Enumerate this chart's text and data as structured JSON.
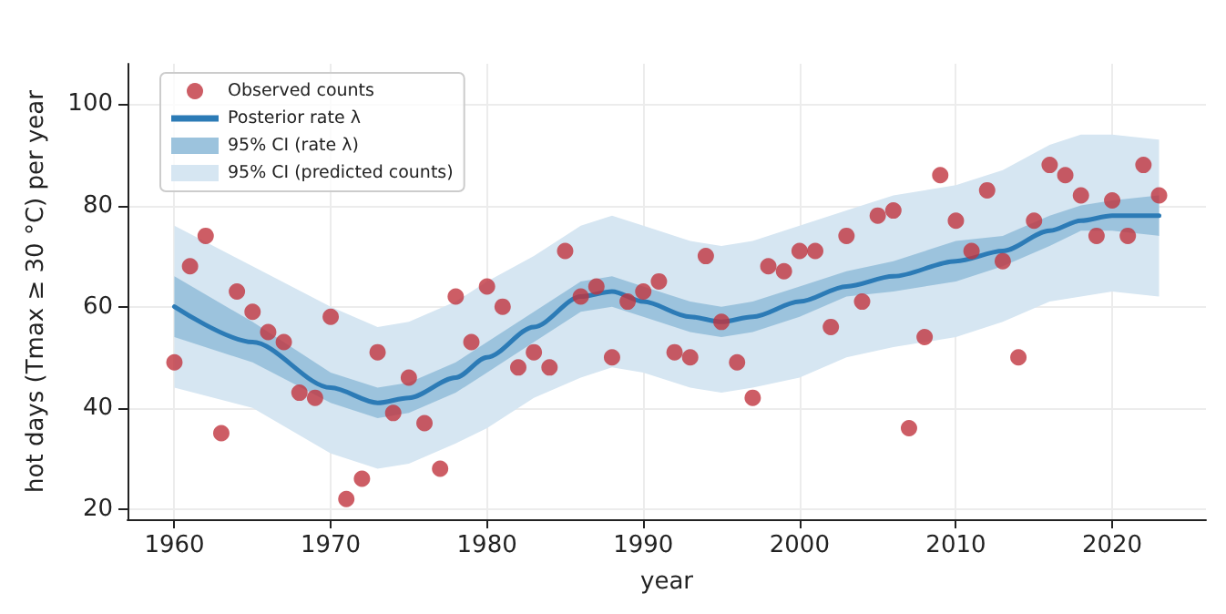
{
  "chart_data": {
    "type": "scatter",
    "xlabel": "year",
    "ylabel": "hot days (Tmax ≥ 30 °C) per year",
    "xlim": [
      1957,
      2026
    ],
    "ylim": [
      18,
      108
    ],
    "xticks": [
      1960,
      1970,
      1980,
      1990,
      2000,
      2010,
      2020
    ],
    "yticks": [
      20,
      40,
      60,
      80,
      100
    ],
    "grid": true,
    "legend": "top left",
    "marker": "circle",
    "series": [
      {
        "name": "Observed counts",
        "color": "#c0343e",
        "x": [
          1960,
          1961,
          1962,
          1963,
          1964,
          1965,
          1966,
          1967,
          1968,
          1969,
          1970,
          1971,
          1972,
          1973,
          1974,
          1975,
          1976,
          1977,
          1978,
          1979,
          1980,
          1981,
          1982,
          1983,
          1984,
          1985,
          1986,
          1987,
          1988,
          1989,
          1990,
          1991,
          1992,
          1993,
          1994,
          1995,
          1996,
          1997,
          1998,
          1999,
          2000,
          2001,
          2002,
          2003,
          2004,
          2005,
          2006,
          2007,
          2008,
          2009,
          2010,
          2011,
          2012,
          2013,
          2014,
          2015,
          2016,
          2017,
          2018,
          2019,
          2020,
          2021,
          2022,
          2023
        ],
        "values": [
          49,
          68,
          74,
          35,
          63,
          59,
          55,
          53,
          43,
          42,
          58,
          22,
          26,
          51,
          39,
          46,
          37,
          28,
          62,
          53,
          64,
          60,
          48,
          51,
          48,
          71,
          62,
          64,
          50,
          61,
          63,
          65,
          51,
          50,
          70,
          57,
          49,
          42,
          68,
          67,
          71,
          71,
          56,
          74,
          61,
          78,
          79,
          36,
          54,
          86,
          77,
          71,
          83,
          69,
          50,
          77,
          88,
          86,
          82,
          74,
          81,
          74,
          88,
          82
        ]
      },
      {
        "name": "Posterior rate λ",
        "type": "line",
        "color": "#2c7bb6",
        "marker": "none",
        "x": [
          1960,
          1965,
          1970,
          1973,
          1975,
          1978,
          1980,
          1983,
          1986,
          1988,
          1990,
          1993,
          1995,
          1997,
          2000,
          2003,
          2006,
          2010,
          2013,
          2016,
          2018,
          2020,
          2023
        ],
        "values": [
          60,
          53,
          44,
          41,
          42,
          46,
          50,
          56,
          62,
          63,
          61,
          58,
          57,
          58,
          61,
          64,
          66,
          69,
          71,
          75,
          77,
          78,
          78
        ]
      },
      {
        "name": "95% CI (rate λ)",
        "type": "area",
        "color": "#9cc3dd",
        "x": [
          1960,
          1965,
          1970,
          1973,
          1975,
          1978,
          1980,
          1983,
          1986,
          1988,
          1990,
          1993,
          1995,
          1997,
          2000,
          2003,
          2006,
          2010,
          2013,
          2016,
          2018,
          2020,
          2023
        ],
        "values": [
          null,
          null,
          null,
          null,
          null,
          null,
          null,
          null,
          null,
          null,
          null,
          null,
          null,
          null,
          null,
          null,
          null,
          null,
          null,
          null,
          null,
          null,
          null
        ],
        "lower": [
          54,
          49,
          41,
          38,
          39,
          43,
          47,
          53,
          59,
          60,
          58,
          55,
          54,
          55,
          58,
          62,
          63,
          65,
          68,
          72,
          75,
          75,
          74
        ],
        "upper": [
          66,
          57,
          47,
          44,
          45,
          49,
          53,
          59,
          65,
          66,
          64,
          61,
          60,
          61,
          64,
          67,
          69,
          73,
          74,
          78,
          80,
          81,
          82
        ]
      },
      {
        "name": "95% CI (predicted counts)",
        "type": "area",
        "color": "#d6e6f2",
        "x": [
          1960,
          1965,
          1970,
          1973,
          1975,
          1978,
          1980,
          1983,
          1986,
          1988,
          1990,
          1993,
          1995,
          1997,
          2000,
          2003,
          2006,
          2010,
          2013,
          2016,
          2018,
          2020,
          2023
        ],
        "values": [
          null,
          null,
          null,
          null,
          null,
          null,
          null,
          null,
          null,
          null,
          null,
          null,
          null,
          null,
          null,
          null,
          null,
          null,
          null,
          null,
          null,
          null,
          null
        ],
        "lower": [
          44,
          40,
          31,
          28,
          29,
          33,
          36,
          42,
          46,
          48,
          47,
          44,
          43,
          44,
          46,
          50,
          52,
          54,
          57,
          61,
          62,
          63,
          62
        ],
        "upper": [
          76,
          68,
          60,
          56,
          57,
          61,
          65,
          70,
          76,
          78,
          76,
          73,
          72,
          73,
          76,
          79,
          82,
          84,
          87,
          92,
          94,
          94,
          93
        ]
      }
    ]
  }
}
